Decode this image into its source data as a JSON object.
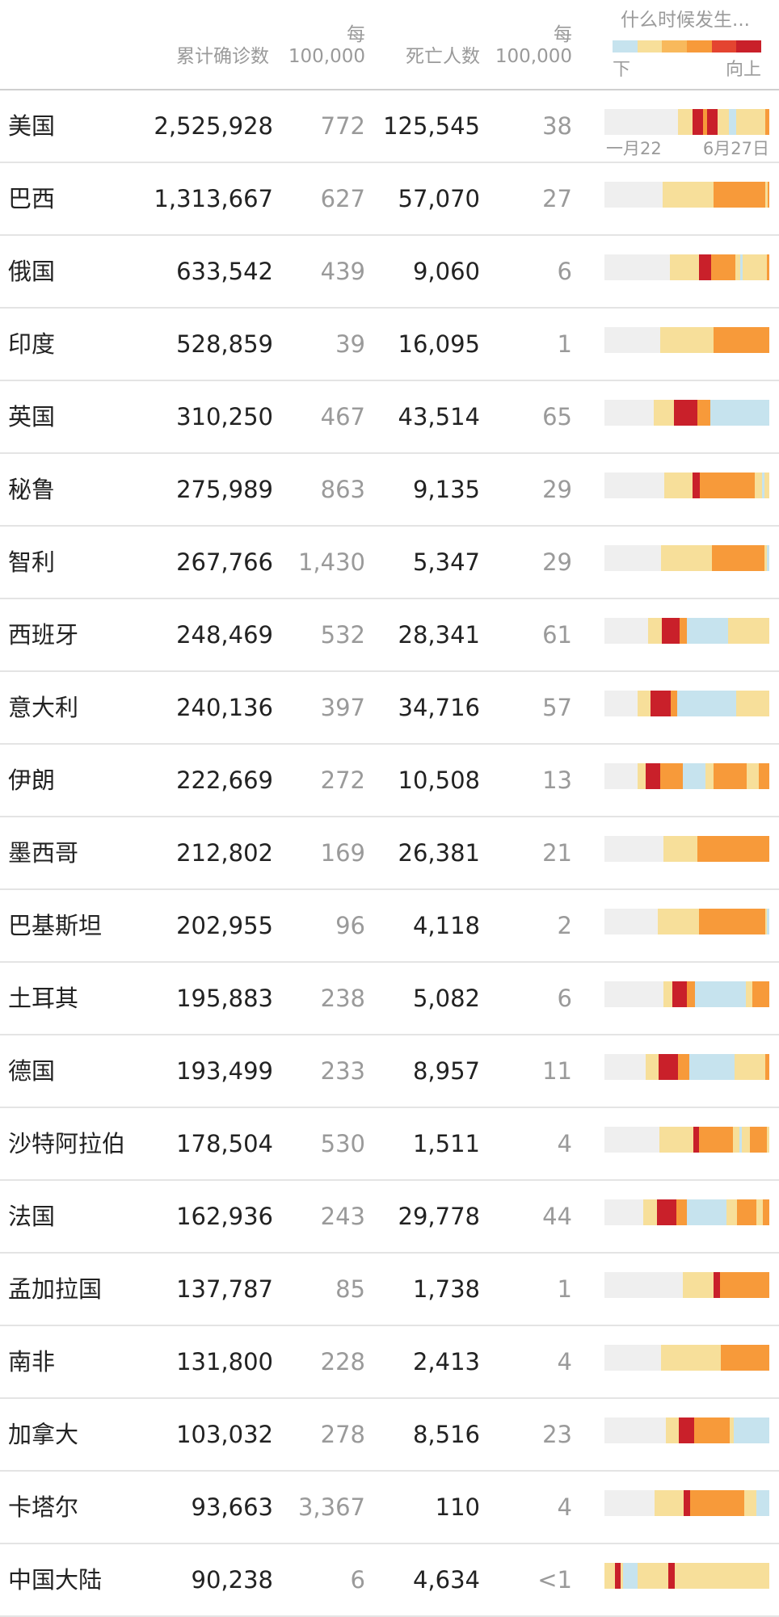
{
  "header": {
    "cases_label": "累计确诊数",
    "per100k_top": "每",
    "per100k_bottom": "100,000",
    "deaths_label": "死亡人数",
    "per100k2_top": "每",
    "per100k2_bottom": "100,000",
    "when_label": "什么时候发生...",
    "legend_down": "下",
    "legend_up": "向上"
  },
  "colors": {
    "empty": "#efefef",
    "down": "#c6e3ee",
    "flat": "#f7df9a",
    "up_light": "#f8b95c",
    "up": "#f79a3a",
    "up_strong": "#e44430",
    "peak": "#c9202a"
  },
  "legend_colors": [
    "#c6e3ee",
    "#f7df9a",
    "#f8b95c",
    "#f79a3a",
    "#e44430",
    "#c9202a"
  ],
  "axis": {
    "start": "一月22",
    "end": "6月27日"
  },
  "rows": [
    {
      "name": "美国",
      "cases": "2,525,928",
      "per1": "772",
      "deaths": "125,545",
      "per2": "38",
      "strip": "eeeeeeeeeeeeeeeeeeeeffffpppupppfffddffffffffu"
    },
    {
      "name": "巴西",
      "cases": "1,313,667",
      "per1": "627",
      "deaths": "57,070",
      "per2": "27",
      "strip": "eeeeeeeeeeeeeeeeeeeeeeeeeeeffffffffffffffffffffffffuuuuuuuuuuuuuuuuuuuuuuuufu"
    },
    {
      "name": "俄国",
      "cases": "633,542",
      "per1": "439",
      "deaths": "9,060",
      "per2": "6",
      "strip": "eeeeeeeeeeeeeeeeeeeeeeeeeeeffffffffffffpppppuuuuuuuuuuffdffffffffffu"
    },
    {
      "name": "印度",
      "cases": "528,859",
      "per1": "39",
      "deaths": "16,095",
      "per2": "1",
      "strip": "eeeeeeeeeeeeeeeeeeeeeeeeeeeffffffffffffffffffffffffffuuuuuuuuuuuuuuuuuuuuuuuuuuu"
    },
    {
      "name": "英国",
      "cases": "310,250",
      "per1": "467",
      "deaths": "43,514",
      "per2": "65",
      "strip": "eeeeeeeeeeeeeeeeeeeffffffffpppppppppuuuuuddddddddddddddddddddddd"
    },
    {
      "name": "秘鲁",
      "cases": "275,989",
      "per1": "863",
      "deaths": "9,135",
      "per2": "29",
      "strip": "eeeeeeeeeeeeeeeeeeeeeeeeeffffffffffffpppuuuuuuuuuuuuuuuuuuuuuuufffdff"
    },
    {
      "name": "智利",
      "cases": "267,766",
      "per1": "1,430",
      "deaths": "5,347",
      "per2": "29",
      "strip": "eeeeeeeeeeeeeeeeeeeeeeeeeeeffffffffffffffffffffffffuuuuuuuuuuuuuuuuuuuuuuuuufd"
    },
    {
      "name": "西班牙",
      "cases": "248,469",
      "per1": "532",
      "deaths": "28,341",
      "per2": "61",
      "strip": "eeeeeeeeeeeeeeeeeeeffffffppppppppuuuddddddddddddddddddffffffffffffffffff"
    },
    {
      "name": "意大利",
      "cases": "240,136",
      "per1": "397",
      "deaths": "34,716",
      "per2": "57",
      "strip": "eeeeeeeeeeeeeeeffffffpppppppppuuudddddddddddddddddddddddddddfffffffffffffff"
    },
    {
      "name": "伊朗",
      "cases": "222,669",
      "per1": "272",
      "deaths": "10,508",
      "per2": "13",
      "strip": "eeeeeeeeeeeeeeeeffffpppppppuuuuuuuuuuudddddddddddffffuuuuuuuuuuuuuuuuffffffuuuuu"
    },
    {
      "name": "墨西哥",
      "cases": "212,802",
      "per1": "169",
      "deaths": "26,381",
      "per2": "21",
      "strip": "eeeeeeeeeeeeeeeeeeeeeeeeeeeeffffffffffffffffuuuuuuuuuuuuuuuuuuuuuuuuuuuuuuuuuu"
    },
    {
      "name": "巴基斯坦",
      "cases": "202,955",
      "per1": "96",
      "deaths": "4,118",
      "per2": "2",
      "strip": "eeeeeeeeeeeeeeeeeeeeeeeeeeffffffffffffffffffffuuuuuuuuuuuuuuuuuuuuuuuuuuuuuuuufd"
    },
    {
      "name": "土耳其",
      "cases": "195,883",
      "per1": "238",
      "deaths": "5,082",
      "per2": "6",
      "strip": "eeeeeeeeeeeeeeeeeeeeeeeeeeeeffffpppppppuuuuddddddddddddddddddddddddfffuuuuuuuu"
    },
    {
      "name": "德国",
      "cases": "193,499",
      "per1": "233",
      "deaths": "8,957",
      "per2": "11",
      "strip": "eeeeeeeeeeeeeeeeeeeffffffpppppppppuuuuudddddddddddddddddddddffffffffffffffuu"
    },
    {
      "name": "沙特阿拉伯",
      "cases": "178,504",
      "per1": "530",
      "deaths": "1,511",
      "per2": "4",
      "strip": "eeeeeeeeeeeeeeeeeeeeeeeeeeffffffffffffffffpppuuuuuuuuuuuuuuuufffdffffuuuuuuuuf"
    },
    {
      "name": "法国",
      "cases": "162,936",
      "per1": "243",
      "deaths": "29,778",
      "per2": "44",
      "strip": "eeeeeeeeeeeeeeeeeeffffffpppppppppuuuuuddddddddddddddddddfffffuuuuuuuuufffuuu"
    },
    {
      "name": "孟加拉国",
      "cases": "137,787",
      "per1": "85",
      "deaths": "1,738",
      "per2": "1",
      "strip": "eeeeeeeeeeeeeeeeeeeeeeeeeeeeeeeeeeeeeefffffffffffffffpppuuuuuuuuuuuuuuuuuuuuuuuu"
    },
    {
      "name": "南非",
      "cases": "131,800",
      "per1": "228",
      "deaths": "2,413",
      "per2": "4",
      "strip": "eeeeeeeeeeeeeeeeeeeeeeeeeeeffffffffffffffffffffffffffffuuuuuuuuuuuuuuuuuuuuuuu"
    },
    {
      "name": "加拿大",
      "cases": "103,032",
      "per1": "278",
      "deaths": "8,516",
      "per2": "23",
      "strip": "eeeeeeeeeeeeeeeeeeeeeeeeeeeeffffffpppppppuuuuuuuuuuuuuuuuffdddddddddddddddd"
    },
    {
      "name": "卡塔尔",
      "cases": "93,663",
      "per1": "3,367",
      "deaths": "110",
      "per2": "4",
      "strip": "eeeeeeeeeeeeeeeeeeeeeeeeffffffffffffffpppuuuuuuuuuuuuuuuuuuuuuuuuuuffffffdddddd"
    },
    {
      "name": "中国大陆",
      "cases": "90,238",
      "per1": "6",
      "deaths": "4,634",
      "per2": "<1",
      "strip": "fffffpppfdddddddfffffffffffffffpppffffffffffffffffffffffffffffffffffffffffffffff"
    }
  ]
}
